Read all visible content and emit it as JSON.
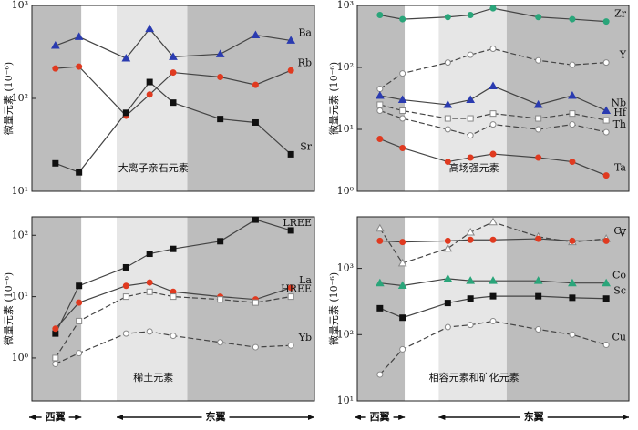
{
  "chart_data": [
    {
      "type": "line",
      "label": "大离子亲石元素",
      "y_title": "微量元素 (10⁻⁶)",
      "log_scale": true,
      "xlim": [
        0,
        12
      ],
      "ylim": [
        10,
        1000
      ],
      "yticks": [
        {
          "value": 10,
          "label": "10¹"
        },
        {
          "value": 100,
          "label": "10²"
        },
        {
          "value": 1000,
          "label": "10³"
        }
      ],
      "x": [
        1,
        2,
        4,
        5,
        6,
        8,
        9.5,
        11
      ],
      "series": [
        {
          "name": "Ba",
          "color": "#2a3bb0",
          "marker": "triangle",
          "values": [
            370,
            460,
            270,
            560,
            280,
            300,
            480,
            420
          ]
        },
        {
          "name": "Rb",
          "color": "#e03a20",
          "marker": "circle",
          "values": [
            210,
            220,
            65,
            110,
            190,
            170,
            140,
            200
          ]
        },
        {
          "name": "Sr",
          "color": "#111111",
          "marker": "square",
          "values": [
            20,
            16,
            70,
            150,
            90,
            60,
            55,
            25
          ]
        }
      ]
    },
    {
      "type": "line",
      "label": "高场强元素",
      "y_title": "微量元素 (10⁻⁶)",
      "log_scale": true,
      "xlim": [
        0,
        12
      ],
      "ylim": [
        1,
        1000
      ],
      "yticks": [
        {
          "value": 1,
          "label": "10⁰"
        },
        {
          "value": 10,
          "label": "10¹"
        },
        {
          "value": 100,
          "label": "10²"
        },
        {
          "value": 1000,
          "label": "10³"
        }
      ],
      "x": [
        1,
        2,
        4,
        5,
        6,
        8,
        9.5,
        11
      ],
      "series": [
        {
          "name": "Zr",
          "color": "#2aa57a",
          "marker": "circle",
          "values": [
            700,
            600,
            650,
            700,
            900,
            650,
            600,
            550
          ]
        },
        {
          "name": "Y",
          "color": "#ffffff",
          "marker": "circle",
          "values": [
            45,
            80,
            120,
            160,
            200,
            130,
            110,
            120
          ]
        },
        {
          "name": "Nb",
          "color": "#2a3bb0",
          "marker": "triangle",
          "values": [
            35,
            30,
            25,
            30,
            50,
            25,
            35,
            20
          ]
        },
        {
          "name": "Hf",
          "color": "#ffffff",
          "marker": "square",
          "values": [
            25,
            20,
            15,
            15,
            18,
            15,
            18,
            14
          ]
        },
        {
          "name": "Th",
          "color": "#ffffff",
          "marker": "circle",
          "values": [
            20,
            15,
            10,
            8,
            12,
            10,
            12,
            9
          ]
        },
        {
          "name": "Ta",
          "color": "#e03a20",
          "marker": "circle",
          "values": [
            7,
            5,
            3,
            3.5,
            4,
            3.5,
            3,
            1.8
          ]
        }
      ]
    },
    {
      "type": "line",
      "label": "稀土元素",
      "y_title": "微量元素 (10⁻⁶)",
      "log_scale": true,
      "xlim": [
        0,
        12
      ],
      "ylim": [
        0.2,
        200
      ],
      "yticks": [
        {
          "value": 1,
          "label": "10⁰"
        },
        {
          "value": 10,
          "label": "10¹"
        },
        {
          "value": 100,
          "label": "10²"
        }
      ],
      "x": [
        1,
        2,
        4,
        5,
        6,
        8,
        9.5,
        11
      ],
      "series": [
        {
          "name": "LREE",
          "color": "#111111",
          "marker": "square",
          "values": [
            2.5,
            15,
            30,
            50,
            60,
            80,
            180,
            120
          ]
        },
        {
          "name": "La",
          "color": "#e03a20",
          "marker": "circle",
          "values": [
            3,
            8,
            15,
            17,
            12,
            10,
            9,
            14
          ]
        },
        {
          "name": "HREE",
          "color": "#ffffff",
          "marker": "square",
          "values": [
            1,
            4,
            10,
            12,
            10,
            9,
            8,
            10
          ]
        },
        {
          "name": "Yb",
          "color": "#ffffff",
          "marker": "circle",
          "values": [
            0.8,
            1.2,
            2.5,
            2.7,
            2.3,
            1.8,
            1.5,
            1.6
          ]
        }
      ],
      "wings": [
        "西翼",
        "东翼"
      ]
    },
    {
      "type": "line",
      "label": "相容元素和矿化元素",
      "y_title": "微量元素 (10⁻⁶)",
      "log_scale": true,
      "xlim": [
        0,
        12
      ],
      "ylim": [
        10,
        6000
      ],
      "yticks": [
        {
          "value": 10,
          "label": "10¹"
        },
        {
          "value": 100,
          "label": "10²"
        },
        {
          "value": 1000,
          "label": "10³"
        }
      ],
      "x": [
        1,
        2,
        4,
        5,
        6,
        8,
        9.5,
        11
      ],
      "series": [
        {
          "name": "Cr",
          "color": "#ffffff",
          "marker": "triangle",
          "values": [
            4000,
            1200,
            2000,
            3500,
            5000,
            3000,
            2500,
            2800
          ]
        },
        {
          "name": "V",
          "color": "#e03a20",
          "marker": "circle",
          "values": [
            2600,
            2500,
            2600,
            2700,
            2700,
            2800,
            2600,
            2600
          ]
        },
        {
          "name": "Co",
          "color": "#2aa57a",
          "marker": "triangle",
          "values": [
            600,
            550,
            700,
            650,
            650,
            650,
            600,
            600
          ]
        },
        {
          "name": "Sc",
          "color": "#111111",
          "marker": "square",
          "values": [
            250,
            180,
            300,
            350,
            380,
            380,
            360,
            350
          ]
        },
        {
          "name": "Cu",
          "color": "#ffffff",
          "marker": "circle",
          "values": [
            25,
            60,
            130,
            140,
            160,
            120,
            100,
            70
          ]
        }
      ],
      "wings": [
        "西翼",
        "东翼"
      ]
    }
  ]
}
